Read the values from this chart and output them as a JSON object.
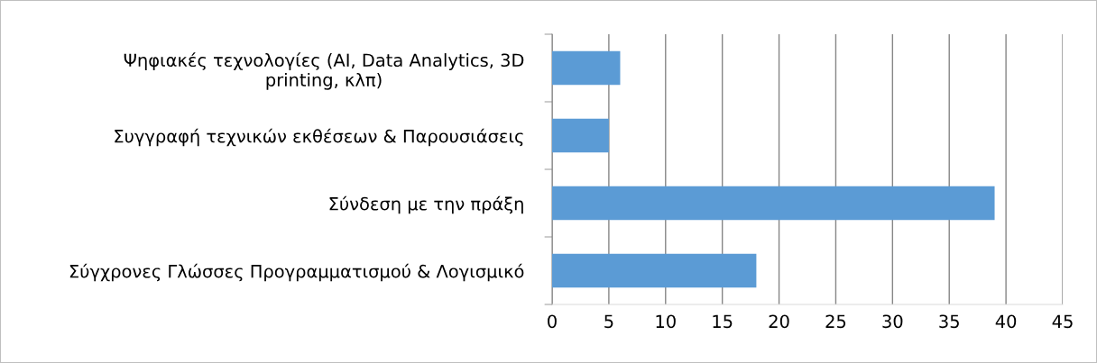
{
  "chart_data": {
    "type": "bar",
    "orientation": "horizontal",
    "categories": [
      "Ψηφιακές τεχνολογίες (AI, Data Analytics, 3D\nprinting, κλπ)",
      "Συγγραφή τεχνικών εκθέσεων & Παρουσιάσεις",
      "Σύνδεση με την πράξη",
      "Σύγχρονες Γλώσσες Προγραμματισμού & Λογισμικό"
    ],
    "values": [
      6,
      5,
      39,
      18
    ],
    "color": "#5b9bd5",
    "xlim": [
      0,
      45
    ],
    "xticks": [
      0,
      5,
      10,
      15,
      20,
      25,
      30,
      35,
      40,
      45
    ],
    "grid": "x"
  }
}
